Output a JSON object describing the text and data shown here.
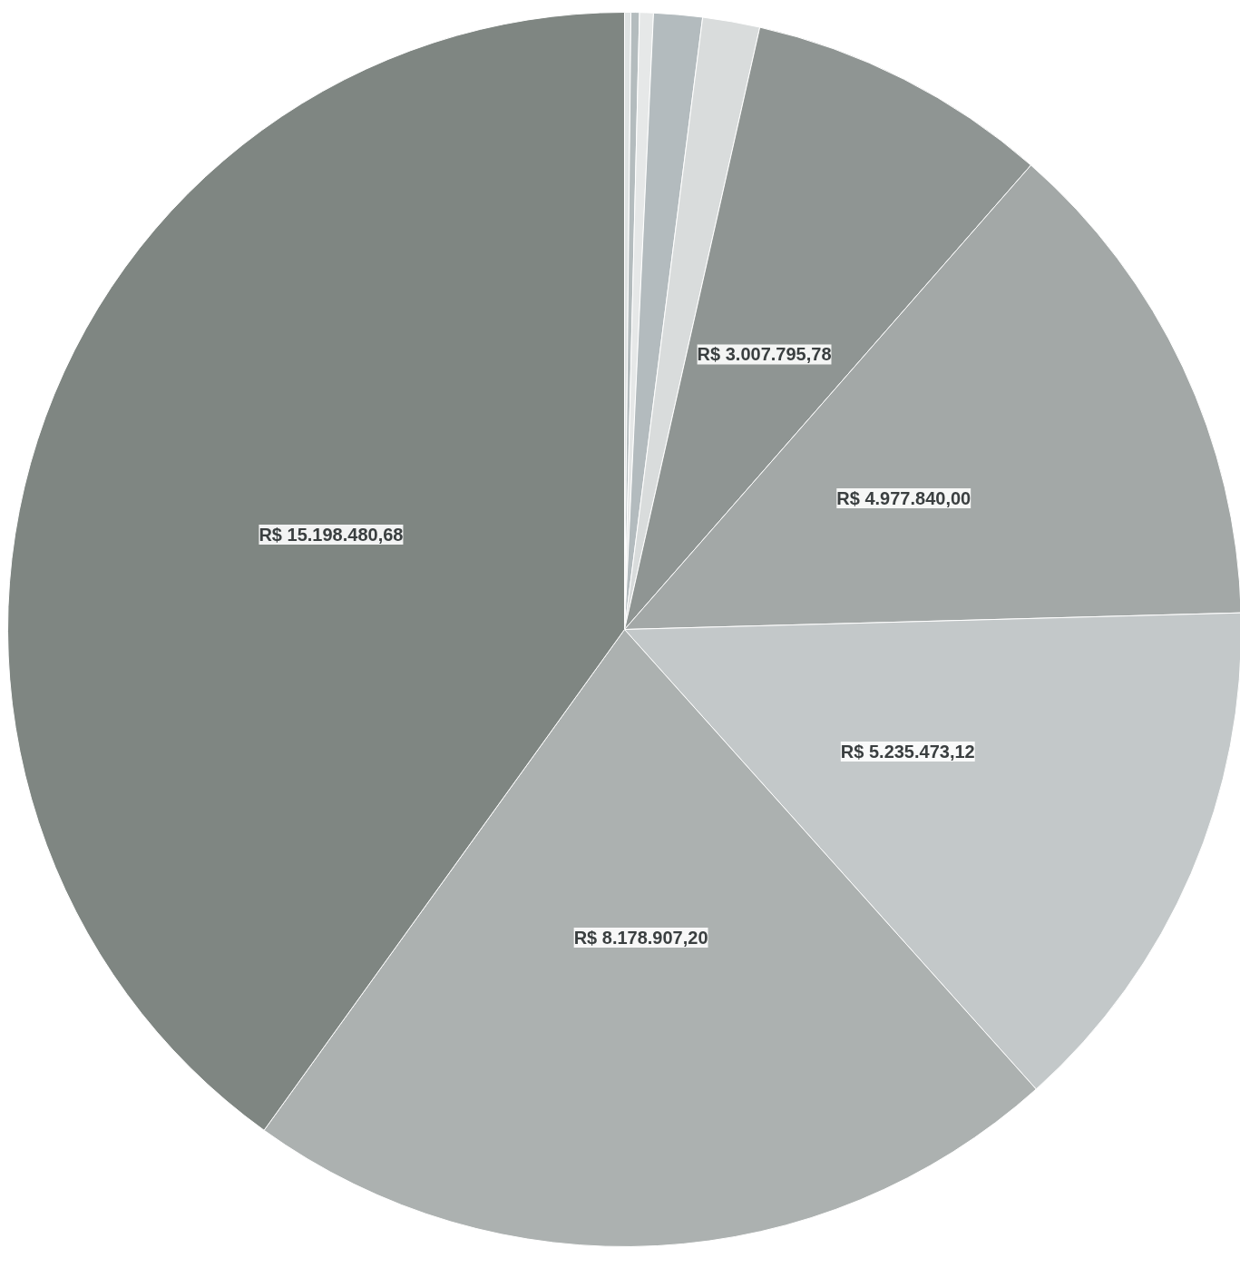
{
  "chart_data": {
    "type": "pie",
    "categories": [
      null,
      null,
      null,
      null,
      null,
      null,
      null,
      null,
      null,
      null
    ],
    "values": [
      63000,
      84000,
      137000,
      483000,
      568000,
      3007795.78,
      4977840.0,
      5235473.12,
      8178907.2,
      15198480.68
    ],
    "colors": [
      "#dfe3e3",
      "#b4bcbe",
      "#e6e8e8",
      "#b3bbbe",
      "#d9dcdc",
      "#8f9593",
      "#a3a8a7",
      "#c3c8c9",
      "#acb1b0",
      "#7f8682"
    ],
    "value_labels": [
      null,
      null,
      null,
      null,
      null,
      "R$ 3.007.795,78",
      "R$ 4.977.840,00",
      "R$ 5.235.473,12",
      "R$ 8.178.907,20",
      "R$ 15.198.480,68"
    ]
  }
}
